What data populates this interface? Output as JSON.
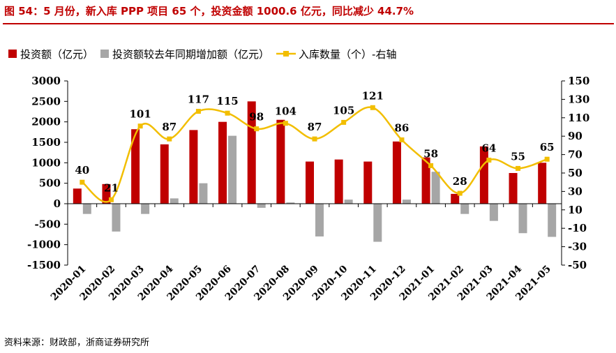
{
  "title": "图 54：5 月份，新入库 PPP 项目 65 个，投资金额 1000.6 亿元，同比减少 44.7%",
  "source": "资料来源：财政部，浙商证券研究所",
  "colors": {
    "title": "#c00000",
    "investment": "#c00000",
    "yoy": "#a6a6a6",
    "count": "#f2be00"
  },
  "chart_data": {
    "type": "bar",
    "categories": [
      "2020-01",
      "2020-02",
      "2020-03",
      "2020-04",
      "2020-05",
      "2020-06",
      "2020-07",
      "2020-08",
      "2020-09",
      "2020-10",
      "2020-11",
      "2020-12",
      "2021-01",
      "2021-02",
      "2021-03",
      "2021-04",
      "2021-05"
    ],
    "series": [
      {
        "name": "投资额（亿元）",
        "type": "bar",
        "axis": "left",
        "values": [
          370,
          480,
          1820,
          1450,
          1800,
          2000,
          2500,
          2050,
          1030,
          1080,
          1030,
          1520,
          1130,
          240,
          1400,
          750,
          1000.6
        ]
      },
      {
        "name": "投资额较去年同期增加额（亿元）",
        "type": "bar",
        "axis": "left",
        "values": [
          -250,
          -680,
          -250,
          130,
          500,
          1660,
          -100,
          30,
          -800,
          100,
          -930,
          100,
          780,
          -250,
          -420,
          -720,
          -810
        ]
      },
      {
        "name": "入库数量（个）-右轴",
        "type": "line",
        "axis": "right",
        "values": [
          40,
          21,
          101,
          87,
          117,
          115,
          98,
          104,
          87,
          105,
          121,
          86,
          58,
          28,
          64,
          55,
          65
        ]
      }
    ],
    "left_axis": {
      "min": -1500,
      "max": 3000,
      "ticks": [
        "3000",
        "2500",
        "2000",
        "1500",
        "1000",
        "500",
        "0",
        "-500",
        "-1000",
        "-1500"
      ]
    },
    "right_axis": {
      "min": -50,
      "max": 150,
      "ticks": [
        "150",
        "130",
        "110",
        "90",
        "70",
        "50",
        "30",
        "10",
        "-10",
        "-30",
        "-50"
      ]
    },
    "grid": false,
    "legend_position": "top-left"
  }
}
